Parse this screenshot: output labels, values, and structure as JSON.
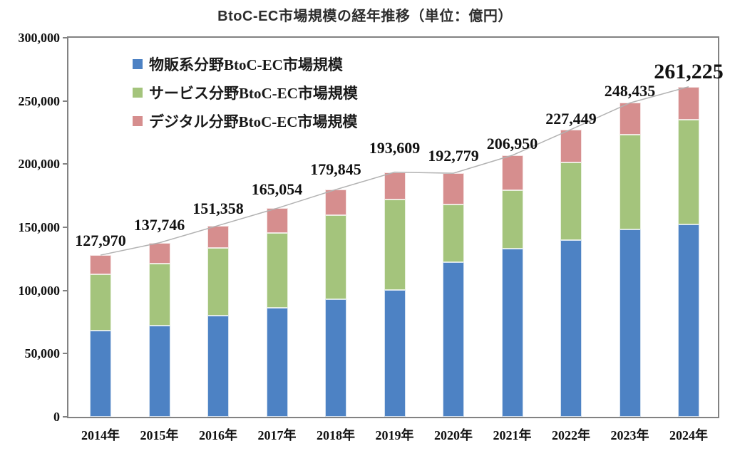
{
  "title": "BtoC-EC市場規模の経年推移（単位：億円）",
  "chart_data": {
    "type": "bar",
    "stacked": true,
    "title": "BtoC-EC市場規模の経年推移（単位：億円）",
    "unit": "億円",
    "categories": [
      "2014年",
      "2015年",
      "2016年",
      "2017年",
      "2018年",
      "2019年",
      "2020年",
      "2021年",
      "2022年",
      "2023年",
      "2024年"
    ],
    "series": [
      {
        "name": "物販系分野BtoC-EC市場規模",
        "color": "#4D82C4",
        "values": [
          68043,
          72398,
          80043,
          86008,
          92992,
          100515,
          122333,
          132865,
          139997,
          148335,
          152254
        ]
      },
      {
        "name": "サービス分野BtoC-EC市場規模",
        "color": "#A4C47C",
        "values": [
          44816,
          49014,
          53533,
          59568,
          66471,
          71672,
          45832,
          46424,
          61478,
          74817,
          83164
        ]
      },
      {
        "name": "デジタル分野BtoC-EC市場規模",
        "color": "#D68E8E",
        "values": [
          15111,
          16334,
          17782,
          19478,
          20382,
          21422,
          24614,
          27661,
          25974,
          25283,
          25807
        ]
      }
    ],
    "totals": [
      127970,
      137746,
      151358,
      165054,
      179845,
      193609,
      192779,
      206950,
      227449,
      248435,
      261225
    ],
    "total_labels": [
      "127,970",
      "137,746",
      "151,358",
      "165,054",
      "179,845",
      "193,609",
      "192,779",
      "206,950",
      "227,449",
      "248,435",
      "261,225"
    ],
    "xlabel": "",
    "ylabel": "",
    "ylim": [
      0,
      300000
    ],
    "ytick_step": 50000,
    "ytick_labels": [
      "0",
      "50,000",
      "100,000",
      "150,000",
      "200,000",
      "250,000",
      "300,000"
    ],
    "grid": false,
    "legend_position": "upper-left-inside",
    "line_overlay": {
      "type": "line",
      "connects": "totals",
      "color": "#B2B2B2"
    },
    "colors": {
      "plot_border": "#828282",
      "label_text": "#111111"
    }
  }
}
